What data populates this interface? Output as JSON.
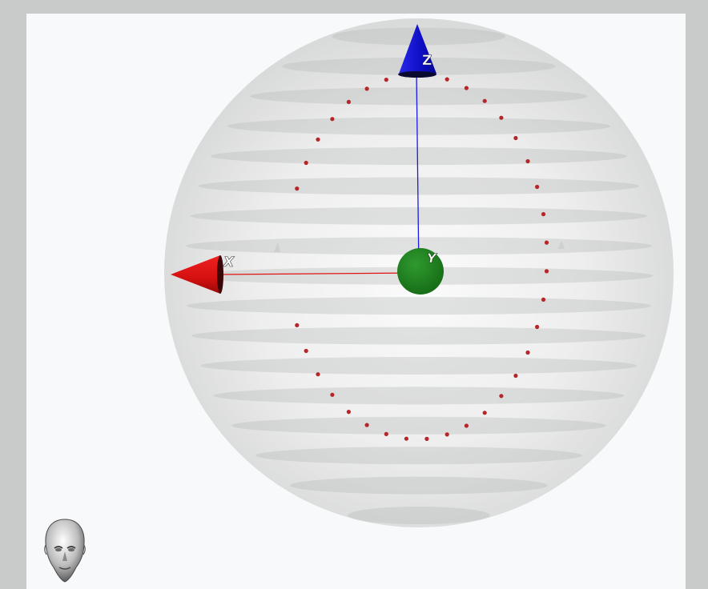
{
  "axes": {
    "x": {
      "label": "X",
      "color": "#e01313"
    },
    "y": {
      "label": "Y",
      "color": "#1a7a1a"
    },
    "z": {
      "label": "Z",
      "color": "#1010d6"
    }
  },
  "sphere": {
    "fill": "#d8d9d9",
    "band_color": "#b9baba",
    "band_count": 17
  },
  "electrodes": {
    "color": "#b5262a",
    "count": 36
  },
  "orientation_widget": {
    "icon": "head-icon"
  }
}
